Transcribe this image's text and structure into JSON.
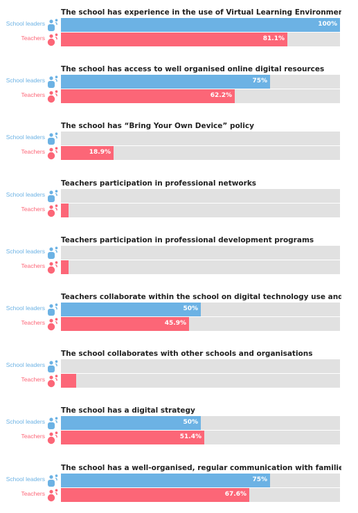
{
  "colors": {
    "school_leaders": "#6cb2e4",
    "teachers": "#fc6677",
    "track": "#e1e1e1"
  },
  "icons": {
    "school_leaders": "school-leader-icon",
    "teachers": "teacher-icon"
  },
  "chart_data": {
    "type": "bar",
    "orientation": "horizontal",
    "xlim": [
      0,
      100
    ],
    "unit": "%",
    "groups": [
      {
        "title": "The school has experience in the use of Virtual Learning Environments",
        "rows": [
          {
            "label": "School leaders",
            "value": 100,
            "value_label": "100%"
          },
          {
            "label": "Teachers",
            "value": 81.1,
            "value_label": "81.1%"
          }
        ]
      },
      {
        "title": "The school has access to well organised online digital resources",
        "rows": [
          {
            "label": "School leaders",
            "value": 75,
            "value_label": "75%"
          },
          {
            "label": "Teachers",
            "value": 62.2,
            "value_label": "62.2%"
          }
        ]
      },
      {
        "title": "The school has “Bring Your Own Device” policy",
        "rows": [
          {
            "label": "School leaders",
            "value": 0,
            "value_label": ""
          },
          {
            "label": "Teachers",
            "value": 18.9,
            "value_label": "18.9%"
          }
        ]
      },
      {
        "title": "Teachers participation in professional networks",
        "rows": [
          {
            "label": "School leaders",
            "value": 0,
            "value_label": ""
          },
          {
            "label": "Teachers",
            "value": 2.7,
            "value_label": ""
          }
        ]
      },
      {
        "title": "Teachers participation in professional development programs",
        "rows": [
          {
            "label": "School leaders",
            "value": 0,
            "value_label": ""
          },
          {
            "label": "Teachers",
            "value": 2.7,
            "value_label": ""
          }
        ]
      },
      {
        "title": "Teachers collaborate within the school on digital technology use and creati",
        "rows": [
          {
            "label": "School leaders",
            "value": 50,
            "value_label": "50%"
          },
          {
            "label": "Teachers",
            "value": 45.9,
            "value_label": "45.9%"
          }
        ]
      },
      {
        "title": "The school collaborates with other schools and organisations",
        "rows": [
          {
            "label": "School leaders",
            "value": 0,
            "value_label": ""
          },
          {
            "label": "Teachers",
            "value": 5.4,
            "value_label": ""
          }
        ]
      },
      {
        "title": "The school has a digital strategy",
        "rows": [
          {
            "label": "School leaders",
            "value": 50,
            "value_label": "50%"
          },
          {
            "label": "Teachers",
            "value": 51.4,
            "value_label": "51.4%"
          }
        ]
      },
      {
        "title": "The school has a well-organised, regular communication with families and/",
        "rows": [
          {
            "label": "School leaders",
            "value": 75,
            "value_label": "75%"
          },
          {
            "label": "Teachers",
            "value": 67.6,
            "value_label": "67.6%"
          }
        ]
      }
    ]
  }
}
